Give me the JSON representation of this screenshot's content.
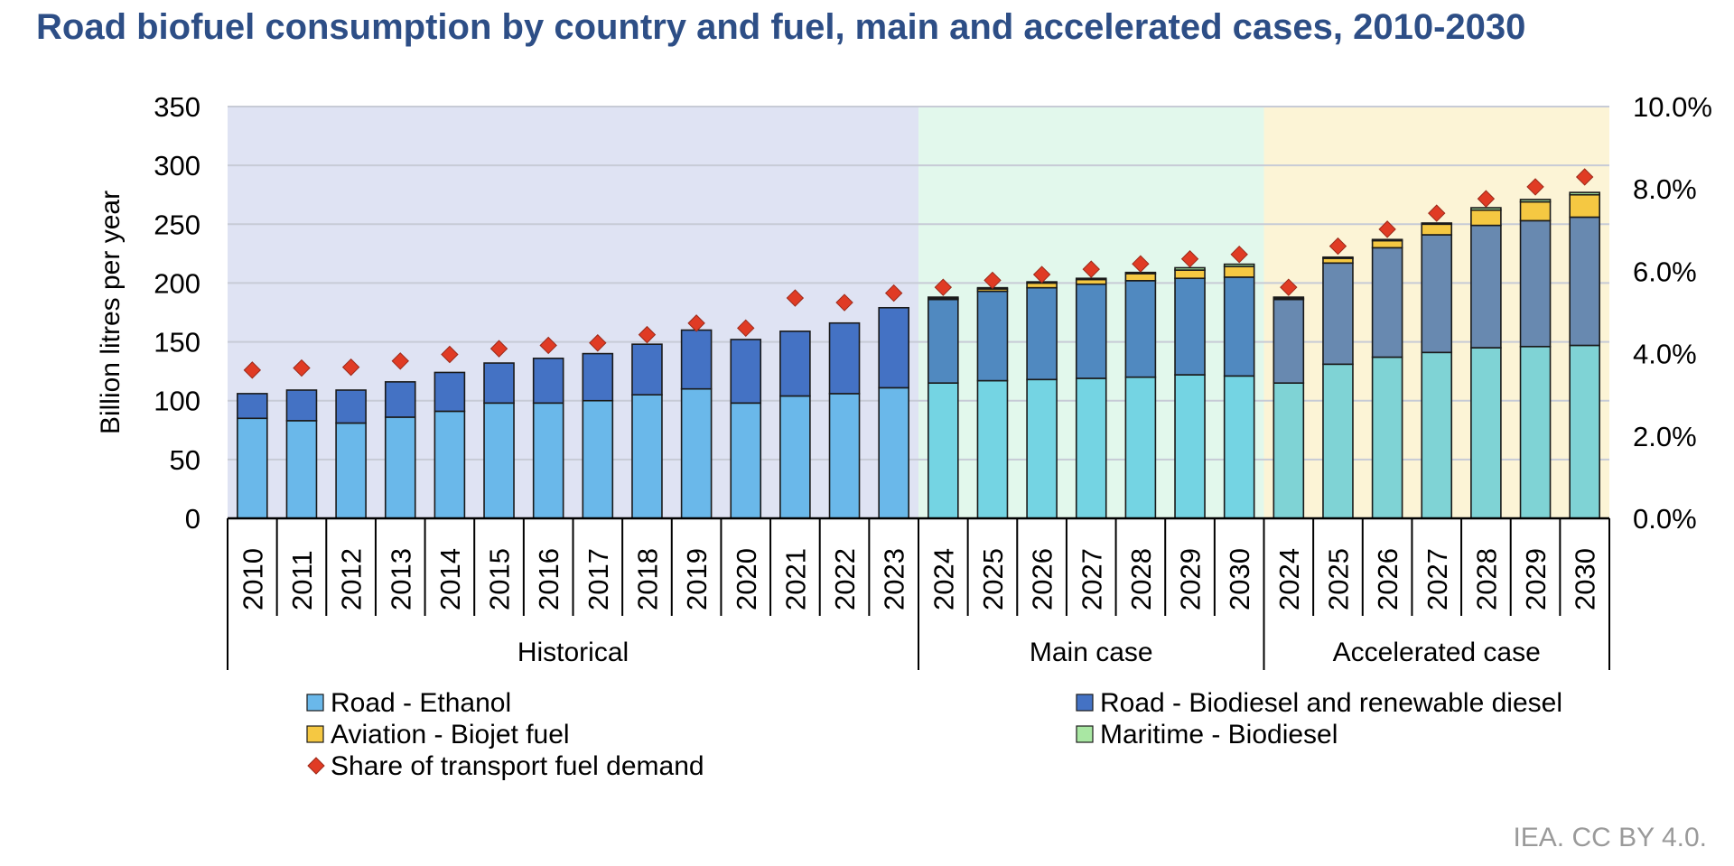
{
  "title": "Road biofuel consumption by country and fuel, main and accelerated cases, 2010-2030",
  "credit": "IEA. CC BY 4.0.",
  "chart_data": {
    "type": "bar",
    "stacked": true,
    "title": "Road biofuel consumption by country and fuel, main and accelerated cases, 2010-2030",
    "ylabel": "Billion litres per year",
    "ylim": [
      0,
      350
    ],
    "yticks": [
      0,
      50,
      100,
      150,
      200,
      250,
      300,
      350
    ],
    "y2lim": [
      0,
      0.1
    ],
    "y2ticks": [
      "0.0%",
      "2.0%",
      "4.0%",
      "6.0%",
      "8.0%",
      "10.0%"
    ],
    "grid": true,
    "legend_position": "bottom",
    "categories": [
      "2010",
      "2011",
      "2012",
      "2013",
      "2014",
      "2015",
      "2016",
      "2017",
      "2018",
      "2019",
      "2020",
      "2021",
      "2022",
      "2023",
      "2024",
      "2025",
      "2026",
      "2027",
      "2028",
      "2029",
      "2030",
      "2024",
      "2025",
      "2026",
      "2027",
      "2028",
      "2029",
      "2030"
    ],
    "groups": [
      {
        "name": "Historical",
        "count": 14,
        "background": "#dfe3f3"
      },
      {
        "name": "Main case",
        "count": 7,
        "background": "#e2f8ec"
      },
      {
        "name": "Accelerated case",
        "count": 7,
        "background": "#fcf4d6"
      }
    ],
    "series": [
      {
        "name": "Road - Ethanol",
        "kind": "bar",
        "color": "#6ab8ea",
        "group_colors": [
          "#6ab8ea",
          "#74d4e3",
          "#7fd3d5"
        ],
        "values": [
          85,
          83,
          81,
          86,
          91,
          98,
          98,
          100,
          105,
          110,
          98,
          104,
          106,
          111,
          115,
          117,
          118,
          119,
          120,
          122,
          121,
          115,
          131,
          137,
          141,
          145,
          146,
          147
        ]
      },
      {
        "name": "Road - Biodiesel and renewable diesel",
        "kind": "bar",
        "color": "#4472c4",
        "group_colors": [
          "#4472c4",
          "#5089c0",
          "#6889b0"
        ],
        "values": [
          21,
          26,
          28,
          30,
          33,
          34,
          38,
          40,
          43,
          50,
          54,
          55,
          60,
          68,
          71,
          76,
          78,
          80,
          82,
          82,
          84,
          71,
          86,
          93,
          100,
          104,
          107,
          109
        ]
      },
      {
        "name": "Aviation - Biojet fuel",
        "kind": "bar",
        "color": "#f5c842",
        "values": [
          0,
          0,
          0,
          0,
          0,
          0,
          0,
          0,
          0,
          0,
          0,
          0,
          0,
          0,
          1,
          2,
          4,
          4,
          6,
          7,
          9,
          1,
          4,
          6,
          9,
          13,
          16,
          19
        ]
      },
      {
        "name": "Maritime - Biodiesel",
        "kind": "bar",
        "color": "#a9e7a3",
        "values": [
          0,
          0,
          0,
          0,
          0,
          0,
          0,
          0,
          0,
          0,
          0,
          0,
          0,
          0,
          1,
          1,
          1,
          1,
          1,
          2,
          2,
          1,
          1,
          1,
          1,
          2,
          2,
          2
        ]
      },
      {
        "name": "Share of transport fuel demand",
        "kind": "marker",
        "axis": "right",
        "color": "#e03b24",
        "values": [
          0.036,
          0.0365,
          0.0367,
          0.0382,
          0.0398,
          0.0412,
          0.042,
          0.0426,
          0.0446,
          0.0474,
          0.0462,
          0.0535,
          0.0524,
          0.0547,
          0.0561,
          0.0578,
          0.0592,
          0.0605,
          0.0618,
          0.063,
          0.0641,
          0.0561,
          0.0661,
          0.0702,
          0.0741,
          0.0776,
          0.0805,
          0.0829
        ]
      }
    ]
  }
}
